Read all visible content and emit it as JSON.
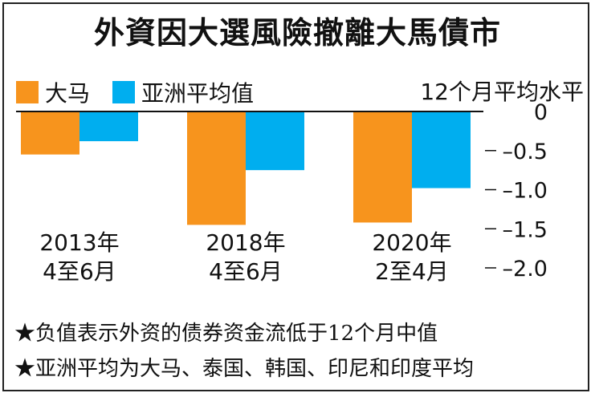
{
  "title": "外資因大選風險撤離大馬債市",
  "unit_label": "12个月平均水平",
  "colors": {
    "malaysia": "#f7941d",
    "asia": "#00aeef"
  },
  "notes": [
    "★负值表示外资的债券资金流低于12个月中值",
    "★亚洲平均为大马、泰国、韩国、印尼和印度平均"
  ],
  "chart_data": {
    "type": "bar",
    "categories": [
      [
        "2013年",
        "4至6月"
      ],
      [
        "2018年",
        "4至6月"
      ],
      [
        "2020年",
        "2至4月"
      ]
    ],
    "series": [
      {
        "name": "大马",
        "values": [
          -0.55,
          -1.45,
          -1.42
        ]
      },
      {
        "name": "亚洲平均值",
        "values": [
          -0.38,
          -0.75,
          -0.98
        ]
      }
    ],
    "ylim": [
      -2.0,
      0
    ],
    "yticks": [
      0,
      -0.5,
      -1.0,
      -1.5,
      -2.0
    ],
    "ytick_labels": [
      "0",
      "–0.5",
      "–1.0",
      "–1.5",
      "–2.0"
    ],
    "legend": "top-left",
    "grid": false
  }
}
